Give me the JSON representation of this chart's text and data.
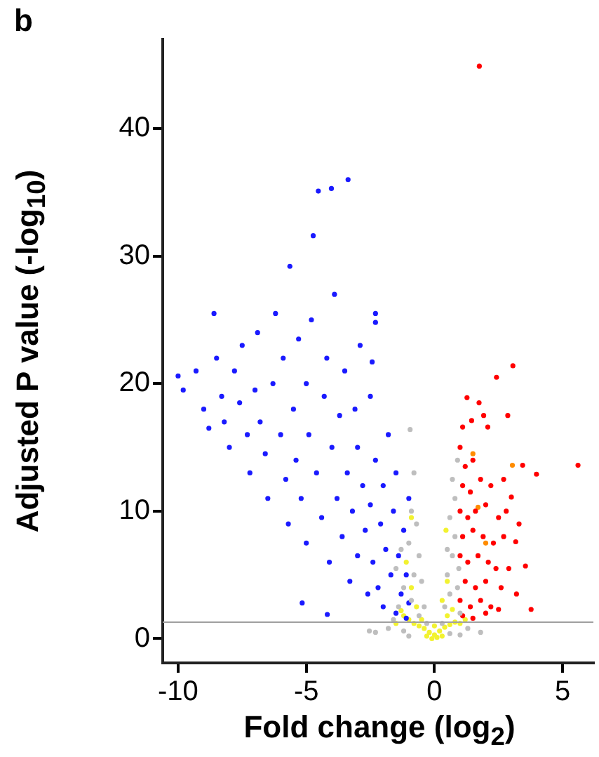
{
  "chart_data": {
    "type": "scatter",
    "xlabel": "Fold change (log$_{2}$)",
    "ylabel": "Adjusted P value (-log$_{10}$)",
    "annotations": [
      "b"
    ],
    "xlim": [
      -10.6,
      6.2
    ],
    "ylim": [
      -1.9,
      47
    ],
    "xticks": [
      -10,
      -5,
      0,
      5
    ],
    "yticks": [
      0,
      10,
      20,
      30,
      40
    ],
    "grid": false,
    "legend": false,
    "marker": "circle",
    "ref_lines": [
      {
        "axis": "y",
        "value": 1.3,
        "color": "#a0a0a0"
      }
    ],
    "series": [
      {
        "color": "#bebebe",
        "x": [
          -0.95,
          -0.8,
          -0.9,
          -1.0,
          -0.7,
          -0.6,
          -0.8,
          -1.2,
          -0.5,
          -0.9,
          -1.4,
          -0.4,
          -1.6,
          -0.6,
          -1.8,
          -1.2,
          -2.54,
          -2.3,
          -1.0,
          -0.3,
          0.3,
          0.4,
          0.6,
          0.5,
          0.7,
          0.8,
          0.6,
          0.8,
          0.7,
          0.9,
          0.5,
          0.9,
          1.0,
          1.3,
          1.8,
          1.0,
          0.6,
          -1.5,
          -1.3,
          0.95
        ],
        "values": [
          16.4,
          13,
          10,
          7.5,
          9,
          6.5,
          5,
          4,
          4.5,
          3,
          2.5,
          2.5,
          1.5,
          1.8,
          0.8,
          0.6,
          0.6,
          0.5,
          0.2,
          1.2,
          1.2,
          2.5,
          3.5,
          5,
          6.5,
          8,
          9.5,
          11,
          12.5,
          14,
          7,
          4,
          2,
          0.8,
          0.5,
          0.3,
          0.4,
          5.5,
          7,
          5.5
        ]
      },
      {
        "color": "#1a1aff",
        "x": [
          -10.0,
          -9.8,
          -9.3,
          -9.0,
          -8.8,
          -8.6,
          -8.5,
          -8.3,
          -8.2,
          -8.0,
          -7.8,
          -7.6,
          -7.5,
          -7.3,
          -7.2,
          -7.0,
          -6.9,
          -6.8,
          -6.6,
          -6.5,
          -6.3,
          -6.2,
          -6.0,
          -5.9,
          -5.8,
          -5.7,
          -5.64,
          -5.5,
          -5.4,
          -5.3,
          -5.2,
          -5.0,
          -5.0,
          -4.9,
          -4.8,
          -4.73,
          -4.6,
          -4.53,
          -4.4,
          -4.3,
          -4.2,
          -4.1,
          -4.02,
          -4.0,
          -3.9,
          -3.8,
          -3.7,
          -3.6,
          -3.5,
          -3.37,
          -3.4,
          -3.3,
          -3.2,
          -3.1,
          -3.0,
          -3.0,
          -2.9,
          -2.8,
          -2.7,
          -2.6,
          -2.5,
          -2.5,
          -2.4,
          -2.3,
          -2.2,
          -2.1,
          -2.0,
          -2.0,
          -1.9,
          -1.8,
          -1.7,
          -1.6,
          -1.5,
          -1.5,
          -1.4,
          -1.3,
          -1.2,
          -1.1,
          -1.1,
          -1.0,
          -1.0,
          -5.16,
          -4.18,
          -2.3,
          -2.3,
          -2.43
        ],
        "values": [
          20.6,
          19.5,
          21,
          18,
          16.5,
          25.5,
          22,
          19,
          17,
          15,
          21,
          18.5,
          23,
          16,
          13,
          19.5,
          24,
          17,
          14.5,
          11,
          20,
          25.5,
          16,
          22,
          12.5,
          9,
          29.2,
          18,
          14,
          23.5,
          11,
          20,
          7.5,
          16,
          25,
          31.6,
          13,
          35.1,
          9.5,
          19,
          22,
          6,
          35.3,
          15,
          27,
          11,
          17.5,
          8,
          21,
          36,
          13,
          4.5,
          10,
          18,
          6.5,
          15,
          23,
          12,
          8.5,
          3.5,
          19,
          10.5,
          6,
          14,
          4,
          9,
          2.5,
          12,
          7,
          16,
          5,
          10,
          2,
          13,
          6.5,
          3.5,
          8.5,
          1.6,
          5,
          11,
          2.8,
          2.8,
          1.9,
          25.5,
          24.8,
          21.7
        ]
      },
      {
        "color": "#ff0000",
        "x": [
          1.75,
          3.06,
          2.42,
          1.27,
          1.74,
          1.92,
          2.86,
          1.45,
          2.08,
          1.1,
          5.6,
          3.98,
          3.44,
          3.0,
          3.17,
          3.77,
          3.55,
          1.0,
          1.2,
          1.5,
          1.1,
          1.4,
          1.8,
          2.2,
          1.0,
          1.3,
          1.6,
          2.0,
          2.5,
          2.8,
          1.1,
          1.5,
          1.9,
          2.3,
          2.7,
          1.0,
          1.3,
          1.7,
          2.1,
          2.4,
          2.9,
          1.2,
          1.6,
          2.0,
          2.6,
          1.0,
          1.4,
          1.8,
          2.2,
          1.1,
          1.5,
          2.0,
          2.5,
          3.2,
          2.7,
          3.3
        ],
        "values": [
          44.9,
          21.4,
          20.5,
          18.9,
          18.5,
          17.5,
          17.5,
          17.1,
          16.6,
          16.6,
          13.6,
          12.9,
          13.6,
          11.1,
          7.6,
          2.3,
          5.7,
          15,
          13.5,
          14,
          12,
          11.5,
          12.5,
          12,
          10,
          9.5,
          10,
          10.5,
          9.5,
          10,
          8,
          8.5,
          8,
          7.5,
          8,
          6.5,
          6,
          6.5,
          6,
          5.5,
          5.5,
          4.5,
          4,
          4.5,
          4,
          3,
          2.5,
          3,
          2.5,
          1.8,
          1.6,
          2,
          2.3,
          3.5,
          12.5,
          9
        ]
      },
      {
        "color": "#f2f230",
        "x": [
          -0.1,
          0,
          0.1,
          -0.2,
          0.2,
          -0.4,
          0.4,
          -0.6,
          0.6,
          -0.8,
          0.8,
          -1.0,
          1.0,
          -1.2,
          -0.3,
          0.3,
          -0.5,
          0.5,
          -1.5,
          -0.7,
          0.7,
          -0.9,
          0.3,
          -1.1,
          0.5,
          -0.9,
          0.45,
          -1.3,
          1.2,
          0
        ],
        "values": [
          0,
          0.3,
          0.1,
          0.5,
          0.6,
          0.8,
          0.9,
          1.0,
          1.1,
          1.2,
          1.3,
          1.5,
          1.2,
          1.8,
          0.2,
          0.2,
          1.5,
          1.8,
          1.2,
          2.5,
          2.3,
          4,
          3,
          6,
          4.5,
          9.5,
          8.5,
          2.2,
          1.5,
          1
        ]
      },
      {
        "color": "#ff8c00",
        "x": [
          3.04,
          1.5,
          1.7,
          2.0
        ],
        "values": [
          13.6,
          14.5,
          10.3,
          7.5
        ]
      }
    ]
  }
}
